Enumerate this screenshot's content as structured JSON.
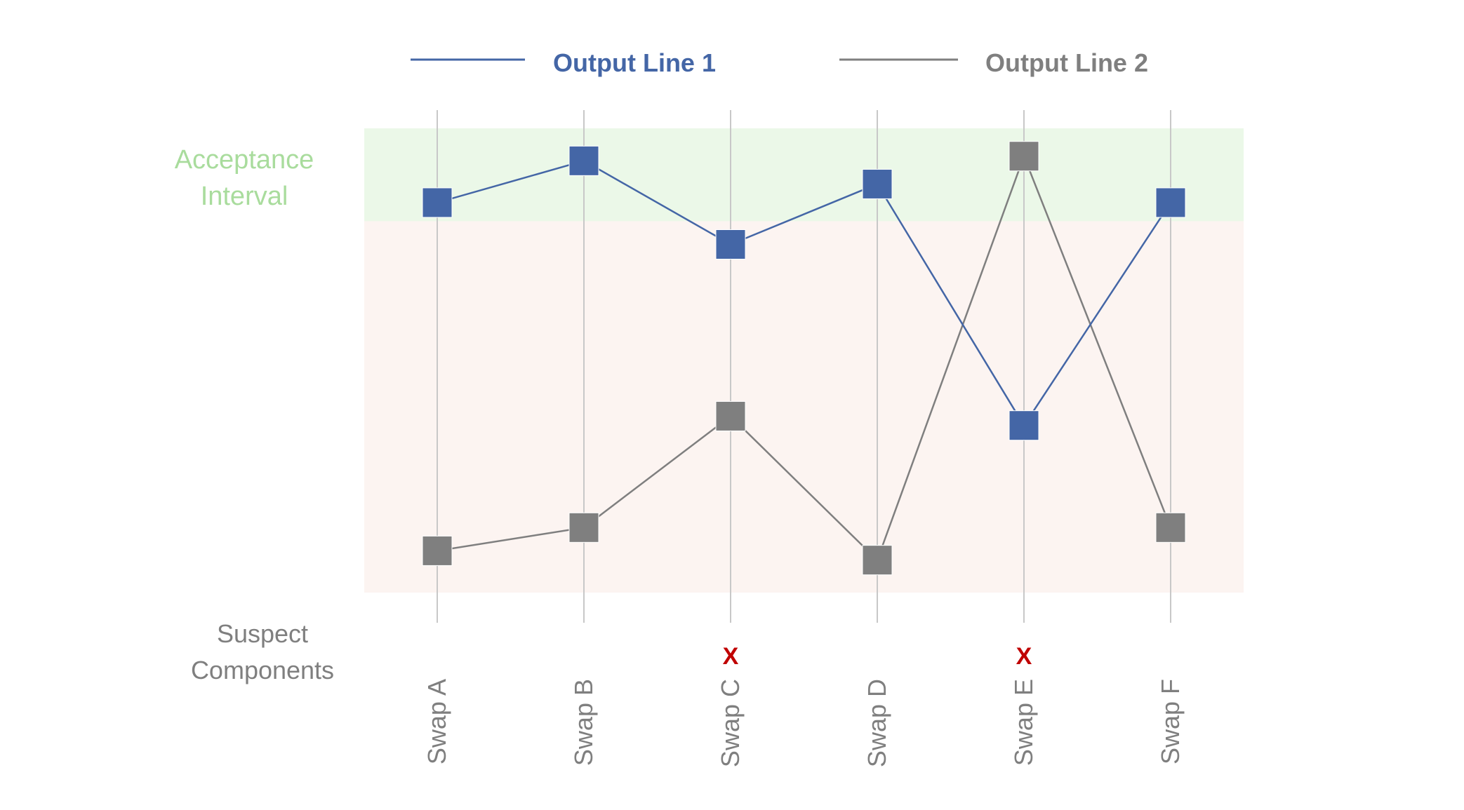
{
  "chart_data": {
    "type": "line",
    "categories": [
      "Swap A",
      "Swap B",
      "Swap C",
      "Swap D",
      "Swap E",
      "Swap F"
    ],
    "series": [
      {
        "name": "Output Line 1",
        "color": "#4466a6",
        "values": [
          84,
          93,
          75,
          88,
          36,
          84
        ]
      },
      {
        "name": "Output Line 2",
        "color": "#7f7f7f",
        "values": [
          9,
          14,
          38,
          7,
          94,
          14
        ]
      }
    ],
    "ylim": [
      0,
      100
    ],
    "acceptance_interval": {
      "label_line1": "Acceptance",
      "label_line2": "Interval",
      "range": [
        80,
        100
      ],
      "color": "#a9dc9d",
      "band_color": "#ebf8e8"
    },
    "fail_band_color": "#fcf4f1",
    "marked_failures": [
      "Swap C",
      "Swap E"
    ],
    "failure_mark": {
      "symbol": "X",
      "color": "#c00000"
    },
    "suspect_label": {
      "line1": "Suspect",
      "line2": "Components"
    },
    "legend": {
      "position": "top"
    },
    "grid": "vertical",
    "xlabel": "",
    "ylabel": ""
  }
}
